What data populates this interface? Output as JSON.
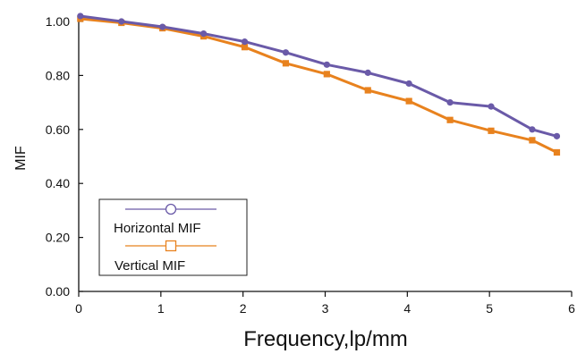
{
  "chart_data": {
    "type": "line",
    "title": "",
    "xlabel": "Frequency,lp/mm",
    "ylabel": "MIF",
    "xlim": [
      0,
      6
    ],
    "ylim": [
      0,
      1.0
    ],
    "x_ticks": [
      "0",
      "1",
      "2",
      "3",
      "4",
      "5",
      "6"
    ],
    "y_ticks": [
      "0.00",
      "0.20",
      "0.40",
      "0.60",
      "0.80",
      "1.00"
    ],
    "grid": false,
    "legend_position": "bottom-left",
    "series": [
      {
        "name": "Horizontal MIF",
        "color": "#6a5aa8",
        "marker": "circle",
        "x": [
          0.02,
          0.52,
          1.02,
          1.52,
          2.02,
          2.52,
          3.02,
          3.52,
          4.02,
          4.52,
          5.02,
          5.52,
          5.82
        ],
        "y": [
          1.02,
          1.0,
          0.98,
          0.955,
          0.925,
          0.885,
          0.84,
          0.81,
          0.77,
          0.7,
          0.685,
          0.6,
          0.575
        ]
      },
      {
        "name": "Vertical MIF",
        "color": "#e8821e",
        "marker": "square",
        "x": [
          0.02,
          0.52,
          1.02,
          1.52,
          2.02,
          2.52,
          3.02,
          3.52,
          4.02,
          4.52,
          5.02,
          5.52,
          5.82
        ],
        "y": [
          1.01,
          0.995,
          0.975,
          0.945,
          0.905,
          0.845,
          0.805,
          0.745,
          0.705,
          0.635,
          0.595,
          0.56,
          0.515
        ]
      }
    ]
  }
}
